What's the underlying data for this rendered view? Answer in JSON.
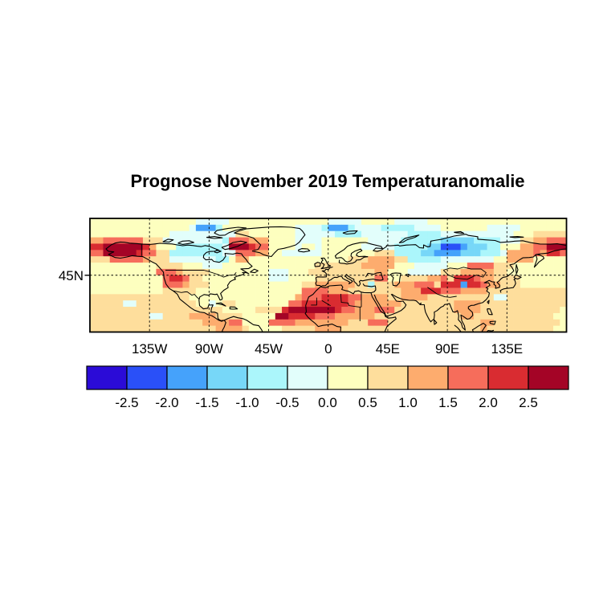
{
  "title": "Prognose November 2019 Temperaturanomalie",
  "map": {
    "y_axis_label": "45N",
    "x_ticks": [
      {
        "lon": -135,
        "label": "135W"
      },
      {
        "lon": -90,
        "label": "90W"
      },
      {
        "lon": -45,
        "label": "45W"
      },
      {
        "lon": 0,
        "label": "0"
      },
      {
        "lon": 45,
        "label": "45E"
      },
      {
        "lon": 90,
        "label": "90E"
      },
      {
        "lon": 135,
        "label": "135E"
      }
    ],
    "y_ticks": [
      {
        "lat": 45,
        "label": "45N"
      }
    ]
  },
  "chart_data": {
    "type": "heatmap",
    "title": "Prognose November 2019 Temperaturanomalie",
    "xlabel": "",
    "ylabel": "",
    "lon_range": [
      -180,
      180
    ],
    "lat_range": [
      0,
      90
    ],
    "cell_size_deg": 5,
    "grid_on": true,
    "gridline_lons": [
      -135,
      -90,
      -45,
      0,
      45,
      90,
      135
    ],
    "gridline_lats": [
      45
    ],
    "legend_position": "bottom",
    "colorbar_tick_labels": [
      "-2.5",
      "-2.0",
      "-1.5",
      "-1.0",
      "-0.5",
      "0.0",
      "0.5",
      "1.0",
      "1.5",
      "2.0",
      "2.5"
    ],
    "palette_levels": [
      -3.0,
      -2.5,
      -2.0,
      -1.5,
      -1.0,
      -0.5,
      0.0,
      0.5,
      1.0,
      1.5,
      2.0,
      2.5,
      3.0
    ],
    "palette_hex": [
      "#2B0BD7",
      "#2A50F8",
      "#45A2FB",
      "#77D7F8",
      "#ABF6FB",
      "#E2FEFB",
      "#FDFFBF",
      "#FEDE9C",
      "#FDAC6E",
      "#F66D5B",
      "#D92C31",
      "#A40426"
    ],
    "grid_encoding": "18 rows (north 90N to equator 0N) of 72 hex digits (5 deg cells, lon -180 to 180); each digit 0-b indexes palette_hex",
    "grid": [
      "666666666666666655555666666666666666555556666655555666666666666666666666",
      "666666666666666522246666666666655554222455554444455556666666555556666666",
      "666666666666555555555577666666655555544445555555444445555555555566677777",
      "889999997775555555554999888666655556666666555554444443333344445557788999",
      "aabbbbbba866644444445bbba99666656656666665555544444331112333446668899bbb",
      "99bbbbba9977444444445599988665555556666666677744443322223334445888898aa9",
      "777999998777555555544688666666666666666777888877444445555555566888866666",
      "666666666677776665556666666666666677777778888866655555666999977766666666",
      "666666666699987777666666666555666777777777788666555557778888877666666666",
      "666666666669aa977666666666655566667777777779966777788",
      "6666666666699987776666666666666677888888774777888999aaa2aa98877766666666",
      "666666666667777766666666666666669999888777777778",
      "777777777777777666666666666666668999aaaa998888778888777777777755777777777",
      "777777557777777777666677666666669",
      "77777777777777777777666667777abbbbbbba99888999777777777888877",
      "7777777775577778888777766666bbaaaa999888888777777777777788777",
      "777777777777777778888996666999988888888777999777777777777778877777777777",
      "777777777777777777788887666667777788887777777777777777777778"
    ],
    "grid_rows_full": [
      "666666666666666655555666666666666666555556666655555666666666666666666666",
      "666666666666666522246666666666655554222455554444455556666666555556666666",
      "666666666666555555555577666666655555544445555555444445555555555566677777",
      "889999997775555555554999888666655556666666555554444443333344445557788999",
      "aabbbbbba866644444445bbba99666656656666665555544444331112333446668899bbb",
      "99bbbbba9977444444445599988665555556666666677744443322223334445888898aa9",
      "777999998777555555544688666666666666666777888877444445555555566888866666",
      "666666666677776665556666666666666677777778888866655555666999977766666666",
      "666666666699987777666666666555666777777777788666555557778888877666666666",
      "666666666669aa97766666666665556666777777777996677778897aaa988777766666666",
      "66666666666999877766666666666666778888887747778889997aaa2aa98877766666666",
      "66666666666777776666666666666666999988877777777888aaa9998888777777777777",
      "77777777777777766666666666666668999aaaa998888778888777777777755777777777",
      "77777557777777776656776666666699aaaaaaa988888887777777788887777777777777",
      "77777777777777777777666667777abbbbbbba998889997777777778888777777777777",
      "7777777775577778888777766666bbaaaa999888888777777777777788777777777777",
      "77777777777777777888899666699998888888877799977777777777777887777777777",
      "7777777777777777777888876666677777888877777777777777777777787777777777"
    ]
  },
  "colorbar": {
    "tick_labels": [
      "-2.5",
      "-2.0",
      "-1.5",
      "-1.0",
      "-0.5",
      "0.0",
      "0.5",
      "1.0",
      "1.5",
      "2.0",
      "2.5"
    ]
  }
}
